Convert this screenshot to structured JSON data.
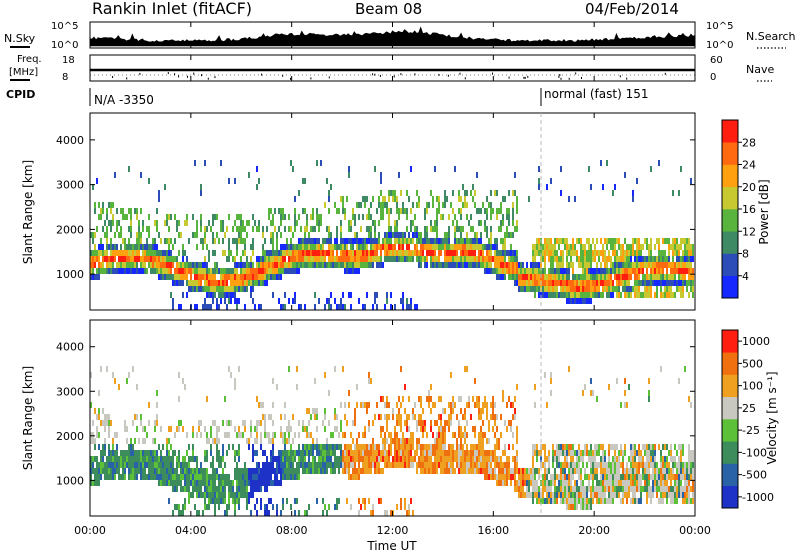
{
  "header": {
    "title": "Rankin Inlet (fitACF)",
    "beam": "Beam 08",
    "date": "04/Feb/2014"
  },
  "top_panels": {
    "nsky_label": "N.Sky",
    "nsearch_label": "N.Search",
    "nsky_ticks": [
      "10^5",
      "10^0"
    ],
    "nsearch_ticks": [
      "10^5",
      "10^0"
    ],
    "freq_label_1": "Freq.",
    "freq_label_2": "[MHz]",
    "freq_ticks": [
      "18",
      "8"
    ],
    "nave_label": "Nave",
    "nave_ticks": [
      "60",
      "0"
    ],
    "cpid_label": "CPID",
    "cpid_left": "N/A -3350",
    "cpid_right": "normal (fast) 151"
  },
  "chart_data": [
    {
      "type": "heatmap",
      "name": "power",
      "ylabel": "Slant Range [km]",
      "yticks": [
        1000,
        2000,
        3000,
        4000
      ],
      "ylim": [
        200,
        4600
      ],
      "xlim": [
        0,
        24
      ],
      "colorbar": {
        "label": "Power [dB]",
        "ticks": [
          "4",
          "8",
          "12",
          "16",
          "20",
          "24",
          "28"
        ],
        "colors": [
          "#1428ff",
          "#2c4cb8",
          "#3d8a64",
          "#58b43c",
          "#c8c830",
          "#ffa010",
          "#ff6a10",
          "#ff1e10"
        ]
      }
    },
    {
      "type": "heatmap",
      "name": "velocity",
      "ylabel": "Slant Range [km]",
      "yticks": [
        1000,
        2000,
        3000,
        4000
      ],
      "ylim": [
        200,
        4600
      ],
      "xlim": [
        0,
        24
      ],
      "xlabel": "Time UT",
      "xticks": [
        "00:00",
        "04:00",
        "08:00",
        "12:00",
        "16:00",
        "20:00",
        "00:00"
      ],
      "colorbar": {
        "label": "Velocity [m s⁻¹]",
        "ticks": [
          "1000",
          "500",
          "100",
          "25",
          "-25",
          "-100",
          "-500",
          "-1000"
        ],
        "colors": [
          "#1e32c8",
          "#2a62a8",
          "#3c8c5c",
          "#5cc038",
          "#c8c8c0",
          "#f0a020",
          "#f07010",
          "#ff1e10"
        ]
      }
    }
  ]
}
